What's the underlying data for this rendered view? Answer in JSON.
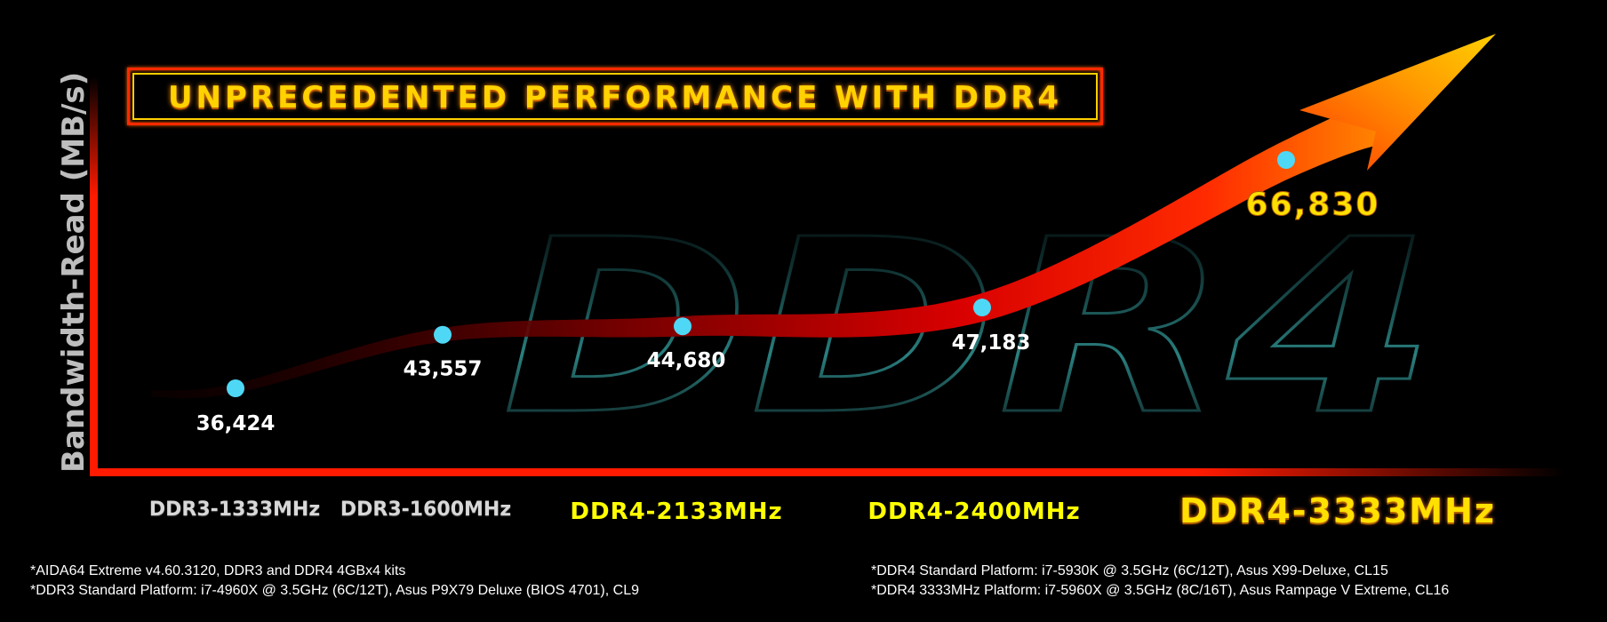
{
  "chart_data": {
    "type": "line",
    "title": "UNPRECEDENTED PERFORMANCE WITH DDR4",
    "ylabel": "Bandwidth-Read (MB/s)",
    "xlabel": "",
    "categories": [
      "DDR3-1333MHz",
      "DDR3-1600MHz",
      "DDR4-2133MHz",
      "DDR4-2400MHz",
      "DDR4-3333MHz"
    ],
    "values": [
      36424,
      43557,
      44680,
      47183,
      66830
    ],
    "value_labels": [
      "36,424",
      "43,557",
      "44,680",
      "47,183",
      "66,830"
    ],
    "background_text": "DDR4",
    "grid": false
  },
  "footnotes": {
    "left": [
      "*AIDA64 Extreme v4.60.3120, DDR3 and DDR4 4GBx4 kits",
      "*DDR3 Standard Platform: i7-4960X @ 3.5GHz (6C/12T), Asus P9X79 Deluxe (BIOS 4701), CL9"
    ],
    "right": [
      "*DDR4 Standard Platform: i7-5930K @ 3.5GHz (6C/12T), Asus X99-Deluxe, CL15",
      "*DDR4 3333MHz Platform: i7-5960X @ 3.5GHz (8C/16T), Asus Rampage V Extreme, CL16"
    ]
  },
  "colors": {
    "background": "#000000",
    "axis": "#ff1a00",
    "point": "#4fd8f5",
    "title_text": "#ffd200",
    "ddr4_label": "#ffff00",
    "ddr3_label": "#d8d8d8"
  }
}
